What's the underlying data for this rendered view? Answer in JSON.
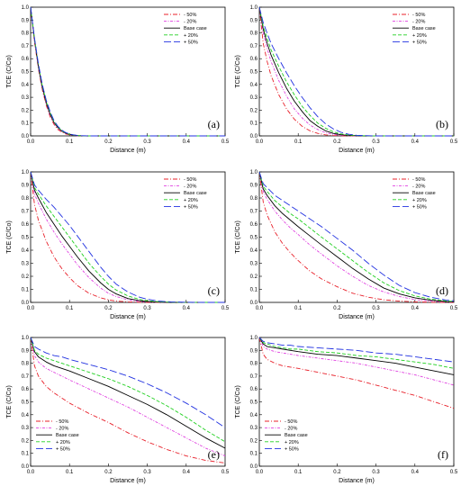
{
  "legend_entries": [
    "- 50%",
    "- 20%",
    "Base case",
    "+ 20%",
    "+ 50%"
  ],
  "series_colors": [
    "#e8202a",
    "#e040e0",
    "#000000",
    "#20d020",
    "#2030e0"
  ],
  "chart_data": [
    {
      "type": "line",
      "panel_label": "(a)",
      "xlabel": "Distance (m)",
      "ylabel": "TCE (C/Co)",
      "xlim": [
        0,
        0.5
      ],
      "ylim": [
        0,
        1.0
      ],
      "xticks": [
        "0.0",
        "0.1",
        "0.2",
        "0.3",
        "0.4",
        "0.5"
      ],
      "yticks": [
        "0.0",
        "0.1",
        "0.2",
        "0.3",
        "0.4",
        "0.5",
        "0.6",
        "0.7",
        "0.8",
        "0.9",
        "1.0"
      ],
      "legend": "top-right",
      "x": [
        0,
        0.01,
        0.02,
        0.03,
        0.04,
        0.05,
        0.06,
        0.07,
        0.08,
        0.09,
        0.1,
        0.11,
        0.12,
        0.13,
        0.15,
        0.2,
        0.3,
        0.4,
        0.5
      ],
      "series": [
        {
          "name": "- 50%",
          "values": [
            1.0,
            0.73,
            0.52,
            0.36,
            0.24,
            0.15,
            0.09,
            0.05,
            0.03,
            0.015,
            0.008,
            0.004,
            0.002,
            0.001,
            0,
            0,
            0,
            0,
            0
          ]
        },
        {
          "name": "- 20%",
          "values": [
            1.0,
            0.74,
            0.53,
            0.37,
            0.25,
            0.16,
            0.1,
            0.06,
            0.035,
            0.02,
            0.01,
            0.005,
            0.002,
            0.001,
            0,
            0,
            0,
            0,
            0
          ]
        },
        {
          "name": "Base case",
          "values": [
            1.0,
            0.75,
            0.54,
            0.38,
            0.26,
            0.17,
            0.105,
            0.065,
            0.038,
            0.022,
            0.012,
            0.006,
            0.003,
            0.001,
            0,
            0,
            0,
            0,
            0
          ]
        },
        {
          "name": "+ 20%",
          "values": [
            1.0,
            0.75,
            0.55,
            0.39,
            0.27,
            0.18,
            0.11,
            0.07,
            0.04,
            0.024,
            0.013,
            0.007,
            0.003,
            0.001,
            0,
            0,
            0,
            0,
            0
          ]
        },
        {
          "name": "+ 50%",
          "values": [
            1.0,
            0.76,
            0.56,
            0.4,
            0.28,
            0.19,
            0.12,
            0.075,
            0.045,
            0.026,
            0.015,
            0.008,
            0.004,
            0.002,
            0,
            0,
            0,
            0,
            0
          ]
        }
      ]
    },
    {
      "type": "line",
      "panel_label": "(b)",
      "xlabel": "Distance (m)",
      "ylabel": "TCE (C/Co)",
      "xlim": [
        0,
        0.5
      ],
      "ylim": [
        0,
        1.0
      ],
      "xticks": [
        "0.0",
        "0.1",
        "0.2",
        "0.3",
        "0.4",
        "0.5"
      ],
      "yticks": [
        "0.0",
        "0.1",
        "0.2",
        "0.3",
        "0.4",
        "0.5",
        "0.6",
        "0.7",
        "0.8",
        "0.9",
        "1.0"
      ],
      "legend": "top-right",
      "x": [
        0,
        0.01,
        0.02,
        0.03,
        0.05,
        0.07,
        0.09,
        0.11,
        0.13,
        0.15,
        0.17,
        0.19,
        0.21,
        0.23,
        0.25,
        0.27,
        0.3,
        0.4,
        0.5
      ],
      "series": [
        {
          "name": "- 50%",
          "values": [
            1.0,
            0.72,
            0.58,
            0.47,
            0.32,
            0.21,
            0.13,
            0.075,
            0.04,
            0.02,
            0.008,
            0.003,
            0.001,
            0,
            0,
            0,
            0,
            0,
            0
          ]
        },
        {
          "name": "- 20%",
          "values": [
            1.0,
            0.8,
            0.68,
            0.58,
            0.43,
            0.31,
            0.21,
            0.14,
            0.085,
            0.05,
            0.025,
            0.012,
            0.005,
            0.002,
            0,
            0,
            0,
            0,
            0
          ]
        },
        {
          "name": "Base case",
          "values": [
            1.0,
            0.83,
            0.72,
            0.63,
            0.49,
            0.37,
            0.27,
            0.19,
            0.12,
            0.075,
            0.04,
            0.02,
            0.009,
            0.004,
            0.001,
            0,
            0,
            0,
            0
          ]
        },
        {
          "name": "+ 20%",
          "values": [
            1.0,
            0.85,
            0.76,
            0.67,
            0.54,
            0.42,
            0.32,
            0.23,
            0.16,
            0.1,
            0.06,
            0.032,
            0.015,
            0.007,
            0.003,
            0.001,
            0,
            0,
            0
          ]
        },
        {
          "name": "+ 50%",
          "values": [
            1.0,
            0.88,
            0.8,
            0.72,
            0.6,
            0.49,
            0.39,
            0.3,
            0.22,
            0.15,
            0.095,
            0.055,
            0.028,
            0.013,
            0.005,
            0.002,
            0,
            0,
            0
          ]
        }
      ]
    },
    {
      "type": "line",
      "panel_label": "(c)",
      "xlabel": "Distance (m)",
      "ylabel": "TCE (C/Co)",
      "xlim": [
        0,
        0.5
      ],
      "ylim": [
        0,
        1.0
      ],
      "xticks": [
        "0.0",
        "0.1",
        "0.2",
        "0.3",
        "0.4",
        "0.5"
      ],
      "yticks": [
        "0.0",
        "0.1",
        "0.2",
        "0.3",
        "0.4",
        "0.5",
        "0.6",
        "0.7",
        "0.8",
        "0.9",
        "1.0"
      ],
      "legend": "top-right",
      "x": [
        0,
        0.01,
        0.02,
        0.04,
        0.06,
        0.08,
        0.1,
        0.12,
        0.15,
        0.18,
        0.2,
        0.22,
        0.25,
        0.28,
        0.3,
        0.33,
        0.36,
        0.4,
        0.45,
        0.5
      ],
      "series": [
        {
          "name": "- 50%",
          "values": [
            1.0,
            0.75,
            0.63,
            0.47,
            0.35,
            0.26,
            0.19,
            0.13,
            0.07,
            0.035,
            0.02,
            0.01,
            0.004,
            0.001,
            0,
            0,
            0,
            0,
            0,
            0
          ]
        },
        {
          "name": "- 20%",
          "values": [
            1.0,
            0.83,
            0.76,
            0.64,
            0.54,
            0.45,
            0.37,
            0.29,
            0.19,
            0.11,
            0.07,
            0.045,
            0.02,
            0.008,
            0.004,
            0.001,
            0,
            0,
            0,
            0
          ]
        },
        {
          "name": "Base case",
          "values": [
            1.0,
            0.86,
            0.8,
            0.69,
            0.6,
            0.51,
            0.43,
            0.35,
            0.24,
            0.15,
            0.1,
            0.065,
            0.03,
            0.013,
            0.007,
            0.002,
            0,
            0,
            0,
            0
          ]
        },
        {
          "name": "+ 20%",
          "values": [
            1.0,
            0.88,
            0.83,
            0.74,
            0.66,
            0.58,
            0.5,
            0.42,
            0.3,
            0.2,
            0.14,
            0.095,
            0.05,
            0.023,
            0.013,
            0.005,
            0.002,
            0,
            0,
            0
          ]
        },
        {
          "name": "+ 50%",
          "values": [
            1.0,
            0.9,
            0.86,
            0.79,
            0.73,
            0.66,
            0.59,
            0.51,
            0.39,
            0.27,
            0.2,
            0.14,
            0.08,
            0.04,
            0.024,
            0.01,
            0.004,
            0.001,
            0,
            0
          ]
        }
      ]
    },
    {
      "type": "line",
      "panel_label": "(d)",
      "xlabel": "Distance (m)",
      "ylabel": "TCE (C/Co)",
      "xlim": [
        0,
        0.5
      ],
      "ylim": [
        0,
        1.0
      ],
      "xticks": [
        "0.0",
        "0.1",
        "0.2",
        "0.3",
        "0.4",
        "0.5"
      ],
      "yticks": [
        "0.0",
        "0.1",
        "0.2",
        "0.3",
        "0.4",
        "0.5",
        "0.6",
        "0.7",
        "0.8",
        "0.9",
        "1.0"
      ],
      "legend": "top-right",
      "x": [
        0,
        0.01,
        0.02,
        0.04,
        0.06,
        0.08,
        0.1,
        0.13,
        0.16,
        0.2,
        0.24,
        0.28,
        0.32,
        0.36,
        0.4,
        0.44,
        0.48,
        0.5
      ],
      "series": [
        {
          "name": "- 50%",
          "values": [
            1.0,
            0.77,
            0.67,
            0.54,
            0.45,
            0.38,
            0.32,
            0.24,
            0.18,
            0.12,
            0.07,
            0.04,
            0.02,
            0.01,
            0.004,
            0.001,
            0,
            0
          ]
        },
        {
          "name": "- 20%",
          "values": [
            1.0,
            0.85,
            0.79,
            0.7,
            0.63,
            0.57,
            0.52,
            0.44,
            0.37,
            0.28,
            0.2,
            0.13,
            0.08,
            0.045,
            0.022,
            0.01,
            0.004,
            0.002
          ]
        },
        {
          "name": "Base case",
          "values": [
            1.0,
            0.87,
            0.82,
            0.74,
            0.68,
            0.63,
            0.58,
            0.51,
            0.44,
            0.35,
            0.26,
            0.18,
            0.11,
            0.065,
            0.035,
            0.017,
            0.007,
            0.004
          ]
        },
        {
          "name": "+ 20%",
          "values": [
            1.0,
            0.89,
            0.85,
            0.78,
            0.73,
            0.68,
            0.64,
            0.57,
            0.5,
            0.41,
            0.32,
            0.23,
            0.15,
            0.09,
            0.05,
            0.025,
            0.011,
            0.007
          ]
        },
        {
          "name": "+ 50%",
          "values": [
            1.0,
            0.91,
            0.88,
            0.82,
            0.78,
            0.74,
            0.7,
            0.64,
            0.58,
            0.49,
            0.4,
            0.3,
            0.21,
            0.13,
            0.075,
            0.04,
            0.018,
            0.012
          ]
        }
      ]
    },
    {
      "type": "line",
      "panel_label": "(e)",
      "xlabel": "Distance (m)",
      "ylabel": "TCE (C/Co)",
      "xlim": [
        0,
        0.5
      ],
      "ylim": [
        0,
        1.0
      ],
      "xticks": [
        "0.0",
        "0.1",
        "0.2",
        "0.3",
        "0.4",
        "0.5"
      ],
      "yticks": [
        "0.0",
        "0.1",
        "0.2",
        "0.3",
        "0.4",
        "0.5",
        "0.6",
        "0.7",
        "0.8",
        "0.9",
        "1.0"
      ],
      "legend": "bottom-left",
      "x": [
        0,
        0.01,
        0.02,
        0.04,
        0.06,
        0.08,
        0.1,
        0.15,
        0.2,
        0.25,
        0.3,
        0.35,
        0.4,
        0.45,
        0.5
      ],
      "series": [
        {
          "name": "- 50%",
          "values": [
            1.0,
            0.78,
            0.7,
            0.62,
            0.57,
            0.53,
            0.49,
            0.41,
            0.34,
            0.26,
            0.19,
            0.13,
            0.08,
            0.045,
            0.025
          ]
        },
        {
          "name": "- 20%",
          "values": [
            1.0,
            0.86,
            0.81,
            0.76,
            0.73,
            0.7,
            0.67,
            0.6,
            0.53,
            0.46,
            0.38,
            0.3,
            0.22,
            0.14,
            0.08
          ]
        },
        {
          "name": "Base case",
          "values": [
            1.0,
            0.89,
            0.85,
            0.81,
            0.78,
            0.76,
            0.74,
            0.68,
            0.62,
            0.55,
            0.48,
            0.4,
            0.31,
            0.22,
            0.14
          ]
        },
        {
          "name": "+ 20%",
          "values": [
            1.0,
            0.9,
            0.87,
            0.84,
            0.82,
            0.8,
            0.78,
            0.73,
            0.68,
            0.62,
            0.55,
            0.47,
            0.38,
            0.28,
            0.19
          ]
        },
        {
          "name": "+ 50%",
          "values": [
            1.0,
            0.93,
            0.91,
            0.88,
            0.86,
            0.85,
            0.83,
            0.79,
            0.75,
            0.7,
            0.64,
            0.57,
            0.49,
            0.4,
            0.3
          ]
        }
      ]
    },
    {
      "type": "line",
      "panel_label": "(f)",
      "xlabel": "Distance (m)",
      "ylabel": "TCE (C/Co)",
      "xlim": [
        0,
        0.5
      ],
      "ylim": [
        0,
        1.0
      ],
      "xticks": [
        "0.0",
        "0.1",
        "0.2",
        "0.3",
        "0.4",
        "0.5"
      ],
      "yticks": [
        "0.0",
        "0.1",
        "0.2",
        "0.3",
        "0.4",
        "0.5",
        "0.6",
        "0.7",
        "0.8",
        "0.9",
        "1.0"
      ],
      "legend": "bottom-left",
      "x": [
        0,
        0.01,
        0.02,
        0.04,
        0.06,
        0.08,
        0.1,
        0.15,
        0.2,
        0.25,
        0.3,
        0.35,
        0.4,
        0.45,
        0.5
      ],
      "series": [
        {
          "name": "- 50%",
          "values": [
            1.0,
            0.87,
            0.83,
            0.8,
            0.78,
            0.77,
            0.76,
            0.73,
            0.7,
            0.67,
            0.63,
            0.59,
            0.55,
            0.5,
            0.45
          ]
        },
        {
          "name": "- 20%",
          "values": [
            1.0,
            0.93,
            0.91,
            0.89,
            0.88,
            0.87,
            0.86,
            0.84,
            0.82,
            0.8,
            0.77,
            0.74,
            0.71,
            0.67,
            0.63
          ]
        },
        {
          "name": "Base case",
          "values": [
            1.0,
            0.95,
            0.93,
            0.92,
            0.91,
            0.9,
            0.89,
            0.87,
            0.86,
            0.84,
            0.82,
            0.8,
            0.77,
            0.74,
            0.71
          ]
        },
        {
          "name": "+ 20%",
          "values": [
            1.0,
            0.96,
            0.95,
            0.93,
            0.92,
            0.91,
            0.91,
            0.89,
            0.88,
            0.86,
            0.85,
            0.83,
            0.81,
            0.79,
            0.76
          ]
        },
        {
          "name": "+ 50%",
          "values": [
            1.0,
            0.97,
            0.96,
            0.95,
            0.94,
            0.94,
            0.93,
            0.92,
            0.91,
            0.9,
            0.88,
            0.87,
            0.85,
            0.83,
            0.81
          ]
        }
      ]
    }
  ]
}
